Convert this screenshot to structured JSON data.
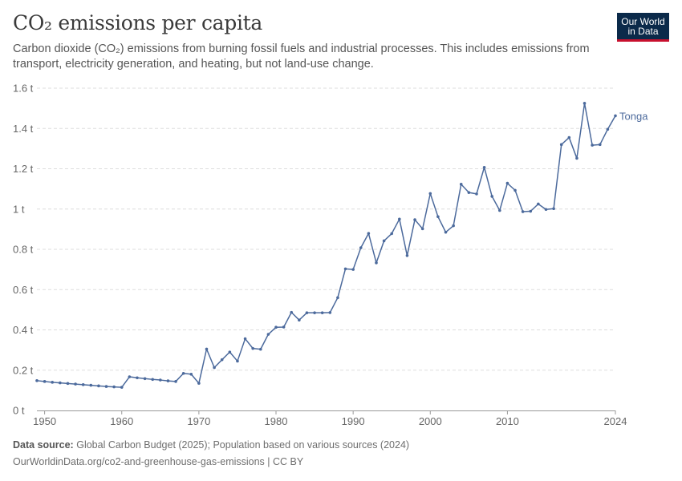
{
  "title": "CO₂ emissions per capita",
  "subtitle": "Carbon dioxide (CO₂) emissions from burning fossil fuels and industrial processes. This includes emissions from transport, electricity generation, and heating, but not land-use change.",
  "logo": {
    "line1": "Our World",
    "line2": "in Data"
  },
  "footer": {
    "source_label": "Data source:",
    "source_text": "Global Carbon Budget (2025); Population based on various sources (2024)",
    "url": "OurWorldinData.org/co2-and-greenhouse-gas-emissions | CC BY"
  },
  "colors": {
    "series": "#4c6a9c",
    "grid": "#dddddd",
    "axis": "#666666"
  },
  "chart_data": {
    "type": "line",
    "title": "CO₂ emissions per capita",
    "xlabel": "",
    "ylabel": "",
    "xlim": [
      1949,
      2024
    ],
    "ylim": [
      0,
      1.6
    ],
    "x_ticks": [
      1950,
      1960,
      1970,
      1980,
      1990,
      2000,
      2010,
      2024
    ],
    "y_ticks": [
      {
        "value": 0,
        "label": "0 t"
      },
      {
        "value": 0.2,
        "label": "0.2 t"
      },
      {
        "value": 0.4,
        "label": "0.4 t"
      },
      {
        "value": 0.6,
        "label": "0.6 t"
      },
      {
        "value": 0.8,
        "label": "0.8 t"
      },
      {
        "value": 1.0,
        "label": "1 t"
      },
      {
        "value": 1.2,
        "label": "1.2 t"
      },
      {
        "value": 1.4,
        "label": "1.4 t"
      },
      {
        "value": 1.6,
        "label": "1.6 t"
      }
    ],
    "grid": true,
    "series": [
      {
        "name": "Tonga",
        "x": [
          1949,
          1950,
          1951,
          1952,
          1953,
          1954,
          1955,
          1956,
          1957,
          1958,
          1959,
          1960,
          1961,
          1962,
          1963,
          1964,
          1965,
          1966,
          1967,
          1968,
          1969,
          1970,
          1971,
          1972,
          1973,
          1974,
          1975,
          1976,
          1977,
          1978,
          1979,
          1980,
          1981,
          1982,
          1983,
          1984,
          1985,
          1986,
          1987,
          1988,
          1989,
          1990,
          1991,
          1992,
          1993,
          1994,
          1995,
          1996,
          1997,
          1998,
          1999,
          2000,
          2001,
          2002,
          2003,
          2004,
          2005,
          2006,
          2007,
          2008,
          2009,
          2010,
          2011,
          2012,
          2013,
          2014,
          2015,
          2016,
          2017,
          2018,
          2019,
          2020,
          2021,
          2022,
          2023,
          2024
        ],
        "y": [
          0.148,
          0.144,
          0.14,
          0.137,
          0.134,
          0.131,
          0.128,
          0.125,
          0.122,
          0.119,
          0.117,
          0.115,
          0.167,
          0.162,
          0.158,
          0.154,
          0.151,
          0.147,
          0.144,
          0.184,
          0.18,
          0.135,
          0.305,
          0.213,
          0.252,
          0.29,
          0.245,
          0.356,
          0.308,
          0.304,
          0.378,
          0.413,
          0.414,
          0.487,
          0.449,
          0.485,
          0.485,
          0.485,
          0.486,
          0.56,
          0.703,
          0.7,
          0.808,
          0.879,
          0.733,
          0.842,
          0.878,
          0.95,
          0.769,
          0.947,
          0.902,
          1.077,
          0.962,
          0.885,
          0.917,
          1.123,
          1.082,
          1.075,
          1.207,
          1.063,
          0.993,
          1.128,
          1.093,
          0.987,
          0.989,
          1.025,
          0.998,
          1.002,
          1.32,
          1.355,
          1.252,
          1.525,
          1.317,
          1.32,
          1.396,
          1.463
        ]
      }
    ]
  }
}
